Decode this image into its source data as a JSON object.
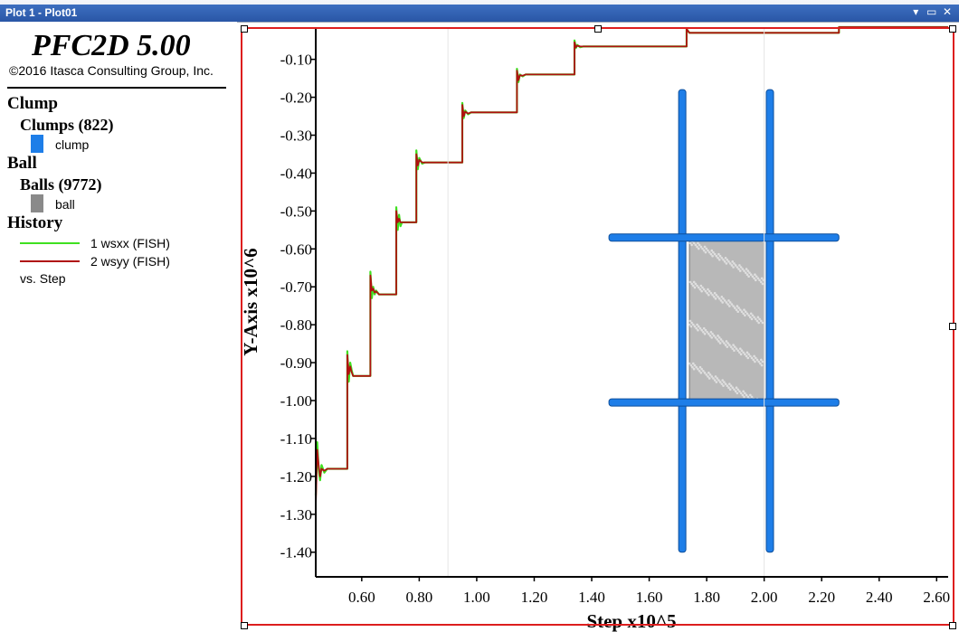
{
  "window": {
    "tab_title": "Plot 1 - Plot01",
    "controls": [
      "▾",
      "▭",
      "✕"
    ]
  },
  "legend": {
    "app_title": "PFC2D 5.00",
    "copyright": "©2016 Itasca Consulting Group, Inc.",
    "clump_header": "Clump",
    "clumps_label": "Clumps (822)",
    "clump_item": "clump",
    "ball_header": "Ball",
    "balls_label": "Balls (9772)",
    "ball_item": "ball",
    "history_header": "History",
    "history_items": [
      "1 wsxx (FISH)",
      "2 wsyy (FISH)"
    ],
    "vs_step": "vs. Step"
  },
  "colors": {
    "clump": "#1e7ee8",
    "ball": "#8a8a8a",
    "wsxx": "#3fe020",
    "wsyy": "#b01010",
    "frame": "#dd1e1e"
  },
  "chart_data": {
    "type": "line",
    "title": "",
    "xlabel": "Step x10^5",
    "ylabel": "Y-Axis x10^6",
    "xlim": [
      0.44,
      2.64
    ],
    "ylim": [
      -1.465,
      -0.015
    ],
    "x_ticks": [
      "0.60",
      "0.80",
      "1.00",
      "1.20",
      "1.40",
      "1.60",
      "1.80",
      "2.00",
      "2.20",
      "2.40",
      "2.60"
    ],
    "y_ticks": [
      "-0.10",
      "-0.20",
      "-0.30",
      "-0.40",
      "-0.50",
      "-0.60",
      "-0.70",
      "-0.80",
      "-0.90",
      "-1.00",
      "-1.10",
      "-1.20",
      "-1.30",
      "-1.40"
    ],
    "series": [
      {
        "name": "1 wsxx (FISH)",
        "x": [
          0.44,
          0.445,
          0.45,
          0.455,
          0.46,
          0.47,
          0.48,
          0.55,
          0.55,
          0.555,
          0.56,
          0.565,
          0.57,
          0.58,
          0.63,
          0.63,
          0.635,
          0.64,
          0.645,
          0.65,
          0.66,
          0.72,
          0.72,
          0.725,
          0.73,
          0.735,
          0.74,
          0.75,
          0.79,
          0.79,
          0.795,
          0.8,
          0.81,
          0.82,
          0.95,
          0.95,
          0.955,
          0.96,
          0.97,
          0.98,
          1.14,
          1.14,
          1.145,
          1.15,
          1.16,
          1.17,
          1.34,
          1.34,
          1.345,
          1.35,
          1.36,
          1.37,
          1.73,
          1.73,
          1.74,
          2.26,
          2.26,
          2.64
        ],
        "values": [
          -1.25,
          -1.11,
          -1.18,
          -1.21,
          -1.17,
          -1.19,
          -1.18,
          -1.18,
          -0.87,
          -0.95,
          -0.9,
          -0.92,
          -0.935,
          -0.935,
          -0.935,
          -0.66,
          -0.73,
          -0.7,
          -0.72,
          -0.71,
          -0.72,
          -0.72,
          -0.49,
          -0.55,
          -0.51,
          -0.54,
          -0.53,
          -0.53,
          -0.53,
          -0.34,
          -0.39,
          -0.36,
          -0.375,
          -0.372,
          -0.372,
          -0.215,
          -0.255,
          -0.235,
          -0.245,
          -0.24,
          -0.24,
          -0.125,
          -0.16,
          -0.14,
          -0.145,
          -0.14,
          -0.14,
          -0.05,
          -0.07,
          -0.062,
          -0.068,
          -0.066,
          -0.066,
          -0.02,
          -0.03,
          -0.03,
          -0.015,
          -0.015
        ]
      },
      {
        "name": "2 wsyy (FISH)",
        "x": [
          0.44,
          0.445,
          0.45,
          0.455,
          0.46,
          0.47,
          0.48,
          0.55,
          0.55,
          0.555,
          0.56,
          0.565,
          0.57,
          0.58,
          0.63,
          0.63,
          0.635,
          0.64,
          0.645,
          0.65,
          0.66,
          0.72,
          0.72,
          0.725,
          0.73,
          0.735,
          0.74,
          0.75,
          0.79,
          0.79,
          0.795,
          0.8,
          0.81,
          0.82,
          0.95,
          0.95,
          0.955,
          0.96,
          0.97,
          0.98,
          1.14,
          1.14,
          1.145,
          1.15,
          1.16,
          1.17,
          1.34,
          1.34,
          1.345,
          1.35,
          1.36,
          1.37,
          1.73,
          1.73,
          1.74,
          2.26,
          2.26,
          2.64
        ],
        "values": [
          -1.28,
          -1.13,
          -1.17,
          -1.2,
          -1.18,
          -1.185,
          -1.18,
          -1.18,
          -0.88,
          -0.93,
          -0.91,
          -0.925,
          -0.935,
          -0.935,
          -0.935,
          -0.67,
          -0.71,
          -0.705,
          -0.715,
          -0.712,
          -0.72,
          -0.72,
          -0.5,
          -0.53,
          -0.52,
          -0.53,
          -0.53,
          -0.53,
          -0.53,
          -0.35,
          -0.38,
          -0.365,
          -0.372,
          -0.372,
          -0.372,
          -0.22,
          -0.25,
          -0.238,
          -0.243,
          -0.24,
          -0.24,
          -0.13,
          -0.155,
          -0.142,
          -0.143,
          -0.14,
          -0.14,
          -0.055,
          -0.068,
          -0.064,
          -0.066,
          -0.066,
          -0.066,
          -0.02,
          -0.03,
          -0.03,
          -0.015,
          -0.015
        ]
      }
    ],
    "model": {
      "specimen_x": [
        1.74,
        2.0
      ],
      "specimen_y": [
        -1.005,
        -0.57
      ],
      "left_wall_x": 1.715,
      "right_wall_x": 2.02,
      "wall_y": [
        -1.4,
        -0.18
      ],
      "top_platen_y": -0.57,
      "bottom_platen_y": -1.005,
      "platen_x": [
        1.46,
        2.26
      ]
    },
    "grid": false,
    "legend": "left-panel"
  }
}
